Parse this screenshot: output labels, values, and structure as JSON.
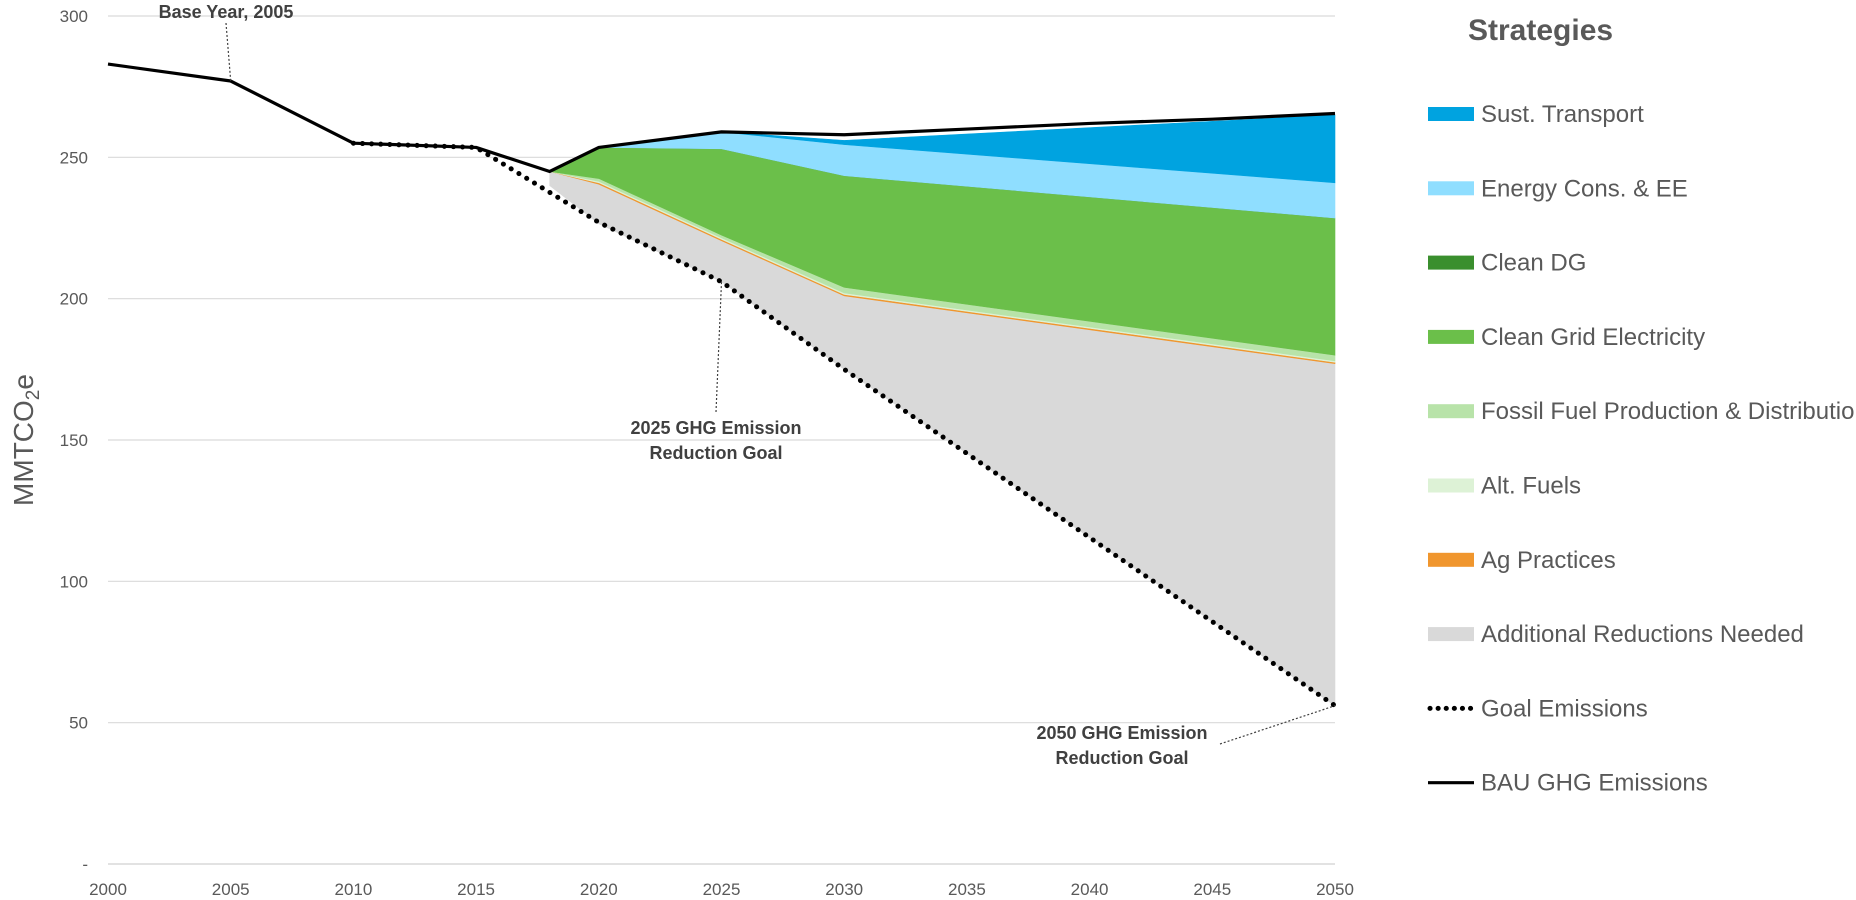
{
  "chart_data": {
    "type": "area",
    "ylabel": "MMTCO2e",
    "ylabel_main": "MMTCO",
    "ylabel_sub": "2",
    "ylabel_suffix": "e",
    "xlim": [
      2000,
      2050
    ],
    "ylim": [
      0,
      300
    ],
    "x_ticks": [
      2000,
      2005,
      2010,
      2015,
      2020,
      2025,
      2030,
      2035,
      2040,
      2045,
      2050
    ],
    "x_tick_labels": [
      "2000",
      "2005",
      "2010",
      "2015",
      "2020",
      "2025",
      "2030",
      "2035",
      "2040",
      "2045",
      "2050"
    ],
    "y_ticks": [
      0,
      50,
      100,
      150,
      200,
      250,
      300
    ],
    "y_tick_labels": [
      "-",
      "50",
      "100",
      "150",
      "200",
      "250",
      "300"
    ],
    "grid": true,
    "legend_title": "Strategies",
    "legend_position": "right",
    "area_x": [
      2018,
      2020,
      2025,
      2030,
      2050
    ],
    "stack_base": [
      245,
      240.5,
      220.5,
      201,
      177
    ],
    "series": [
      {
        "name": "Sust. Transport",
        "color": "#00A3E0",
        "layer": 0,
        "values": [
          0,
          0,
          0,
          1.5,
          24
        ]
      },
      {
        "name": "Energy Cons. & EE",
        "color": "#8FDEFF",
        "layer": 1,
        "values": [
          0,
          0,
          6,
          11,
          12.5
        ]
      },
      {
        "name": "Clean DG",
        "color": "#3A8F2E",
        "layer": 2,
        "values": [
          0,
          0,
          0,
          0,
          0
        ]
      },
      {
        "name": "Clean Grid Electricity",
        "color": "#6BBF4A",
        "layer": 3,
        "values": [
          0,
          11,
          30.5,
          39.5,
          48.5
        ]
      },
      {
        "name": "Fossil Fuel Production & Distribution",
        "color": "#B8E3A9",
        "layer": 4,
        "values": [
          0,
          1,
          1,
          2,
          2
        ]
      },
      {
        "name": "Alt. Fuels",
        "color": "#DDF2D6",
        "layer": 5,
        "values": [
          0,
          0.5,
          0.5,
          0.5,
          0.5
        ]
      },
      {
        "name": "Ag Practices",
        "color": "#F0962E",
        "layer": 6,
        "values": [
          0,
          0.5,
          0.5,
          0.5,
          0.5
        ]
      },
      {
        "name": "Additional Reductions Needed",
        "color": "#D9D9D9",
        "layer": 7,
        "values": [
          5,
          14,
          14.5,
          26,
          121
        ]
      },
      {
        "name": "Goal Emissions",
        "color": "#000000",
        "style": "dotted",
        "x": [
          2010,
          2015,
          2020,
          2025,
          2030,
          2050
        ],
        "values": [
          255,
          253.5,
          227,
          206,
          175,
          56
        ]
      },
      {
        "name": "BAU GHG Emissions",
        "color": "#000000",
        "style": "solid",
        "x": [
          2000,
          2005,
          2010,
          2015,
          2018,
          2020,
          2025,
          2030,
          2035,
          2040,
          2045,
          2050
        ],
        "values": [
          283,
          277,
          255,
          253.5,
          245,
          253.5,
          259,
          258,
          260,
          262,
          263.5,
          265.5
        ]
      }
    ],
    "annotations": [
      {
        "id": "base-year",
        "lines": [
          "Base Year, 2005"
        ],
        "x": 2005,
        "y": 277
      },
      {
        "id": "goal-2025",
        "lines": [
          "2025 GHG Emission",
          "Reduction Goal"
        ],
        "x": 2025,
        "y": 206
      },
      {
        "id": "goal-2050",
        "lines": [
          "2050 GHG Emission",
          "Reduction Goal"
        ],
        "x": 2050,
        "y": 56
      }
    ]
  }
}
